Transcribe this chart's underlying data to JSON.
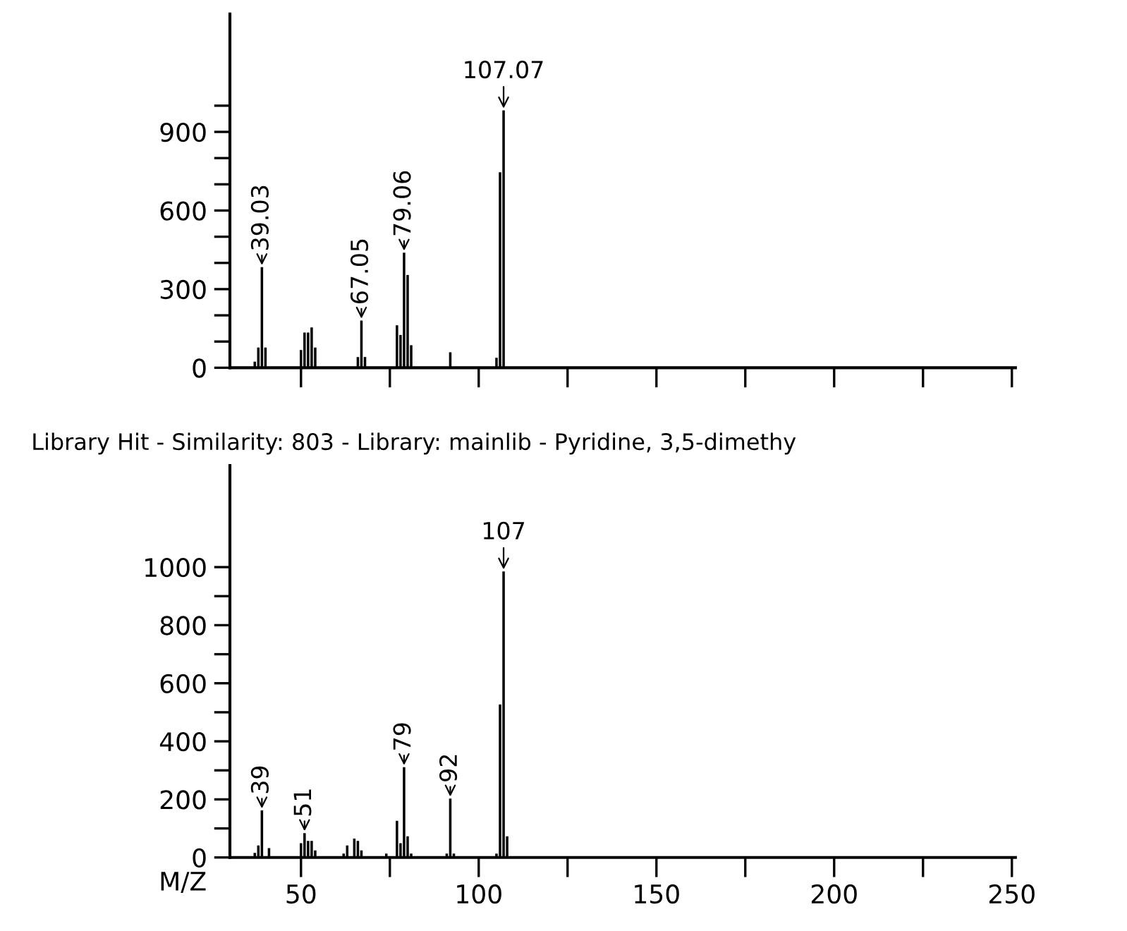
{
  "chart_data": [
    {
      "type": "bar",
      "color": "#000000",
      "x": [
        37,
        38,
        39,
        40,
        49,
        50,
        51,
        52,
        53,
        54,
        64,
        66,
        67,
        68,
        77,
        78,
        79,
        80,
        81,
        92,
        105,
        106,
        107
      ],
      "values": [
        23,
        77,
        384,
        77,
        null,
        68,
        134,
        134,
        154,
        77,
        null,
        41,
        180,
        41,
        162,
        125,
        439,
        354,
        86,
        59,
        38,
        746,
        982
      ],
      "xlim": [
        30,
        251
      ],
      "xticks": [
        50,
        {
          "value": 75,
          "label": null
        },
        {
          "value": 100,
          "label": null
        },
        {
          "value": 125,
          "label": null
        },
        {
          "value": 150,
          "label": null
        },
        {
          "value": 175,
          "label": null
        },
        {
          "value": 200,
          "label": null
        },
        {
          "value": 225,
          "label": null
        },
        {
          "value": 250,
          "label": null
        }
      ],
      "ylim": [
        0,
        1350
      ],
      "yticks": [
        0,
        {
          "value": 100,
          "label": null
        },
        {
          "value": 200,
          "label": null
        },
        300,
        {
          "value": 400,
          "label": null
        },
        {
          "value": 500,
          "label": null
        },
        600,
        {
          "value": 700,
          "label": null
        },
        {
          "value": 800,
          "label": null
        },
        900,
        {
          "value": 1000,
          "label": null
        }
      ],
      "tick_labels": "y",
      "grid": false,
      "legend": false,
      "annotations": [
        {
          "text": "39.03",
          "x": 39,
          "y": 384
        },
        {
          "text": "67.05",
          "x": 67,
          "y": 180
        },
        {
          "text": "79.06",
          "x": 79,
          "y": 439
        },
        {
          "text": "107.07",
          "x": 107,
          "y": 982
        }
      ]
    },
    {
      "type": "bar",
      "color": "#000000",
      "title": "Library Hit - Similarity: 803 - Library: mainlib - Pyridine, 3,5-dimethy",
      "xlabel": "M/Z",
      "x": [
        37,
        38,
        39,
        41,
        50,
        51,
        52,
        53,
        54,
        62,
        63,
        65,
        66,
        67,
        74,
        77,
        78,
        79,
        80,
        81,
        91,
        92,
        93,
        105,
        106,
        107,
        108
      ],
      "values": [
        16,
        41,
        162,
        32,
        49,
        84,
        57,
        57,
        24,
        13,
        41,
        65,
        57,
        24,
        13,
        126,
        49,
        311,
        73,
        13,
        13,
        203,
        13,
        13,
        527,
        985,
        73
      ],
      "xlim": [
        30,
        251
      ],
      "xticks": [
        50,
        {
          "value": 75,
          "label": null
        },
        100,
        {
          "value": 125,
          "label": null
        },
        150,
        {
          "value": 175,
          "label": null
        },
        200,
        {
          "value": 225,
          "label": null
        },
        250
      ],
      "ylim": [
        0,
        1350
      ],
      "yticks": [
        0,
        {
          "value": 100,
          "label": null
        },
        200,
        {
          "value": 300,
          "label": null
        },
        400,
        {
          "value": 500,
          "label": null
        },
        600,
        {
          "value": 700,
          "label": null
        },
        800,
        {
          "value": 900,
          "label": null
        },
        1000
      ],
      "grid": false,
      "legend": false,
      "annotations": [
        {
          "text": "39",
          "x": 39,
          "y": 162
        },
        {
          "text": "51",
          "x": 51,
          "y": 84
        },
        {
          "text": "79",
          "x": 79,
          "y": 311
        },
        {
          "text": "92",
          "x": 92,
          "y": 203
        },
        {
          "text": "107",
          "x": 107,
          "y": 985
        }
      ]
    }
  ]
}
